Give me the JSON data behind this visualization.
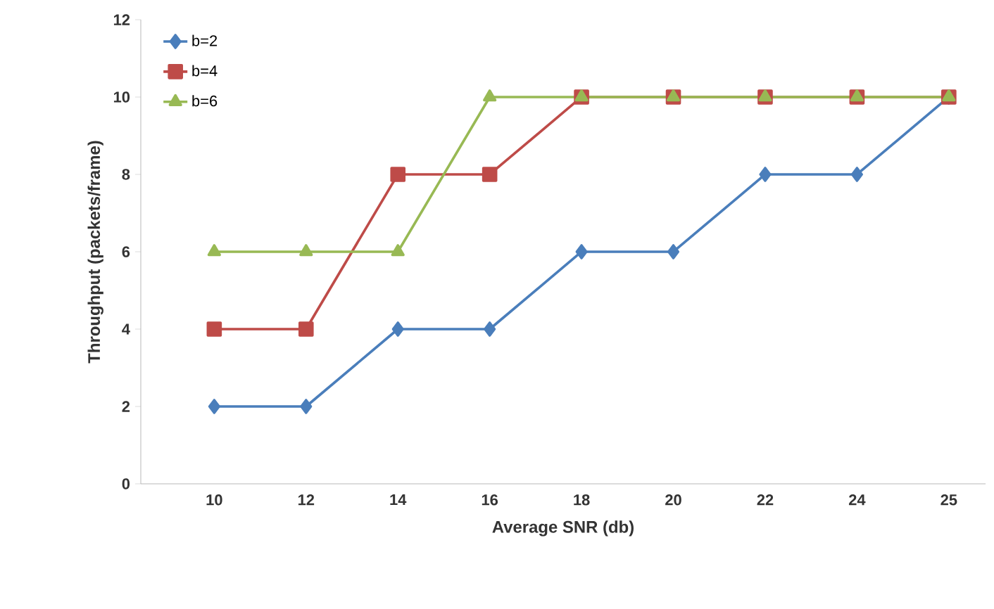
{
  "chart_data": {
    "type": "line",
    "xlabel": "Average SNR (db)",
    "ylabel": "Throughput (packets/frame)",
    "categories": [
      "10",
      "12",
      "14",
      "16",
      "18",
      "20",
      "22",
      "24",
      "25"
    ],
    "ylim": [
      0,
      12
    ],
    "yticks": [
      0,
      2,
      4,
      6,
      8,
      10,
      12
    ],
    "grid": false,
    "legend": "top left",
    "line_style": "solid",
    "series": [
      {
        "name": "b=2",
        "color": "#4a7ebb",
        "marker": "diamond",
        "values": [
          2,
          2,
          4,
          4,
          6,
          6,
          8,
          8,
          10
        ]
      },
      {
        "name": "b=4",
        "color": "#be4b48",
        "marker": "square",
        "values": [
          4,
          4,
          8,
          8,
          10,
          10,
          10,
          10,
          10
        ]
      },
      {
        "name": "b=6",
        "color": "#98b954",
        "marker": "triangle",
        "values": [
          6,
          6,
          6,
          10,
          10,
          10,
          10,
          10,
          10
        ]
      }
    ]
  }
}
